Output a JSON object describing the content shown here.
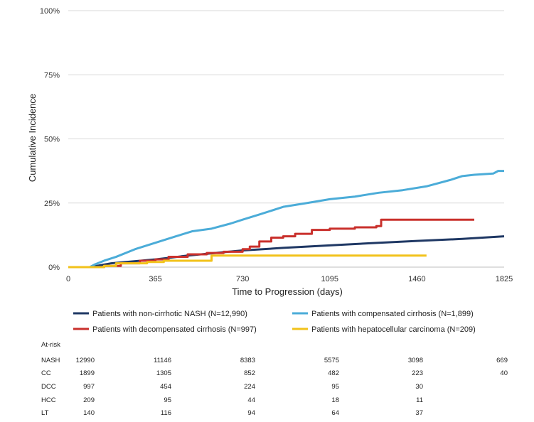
{
  "chart_data": {
    "type": "line",
    "title": "",
    "xlabel": "Time to Progression (days)",
    "ylabel": "Cumulative Incidence",
    "xlim": [
      0,
      1825
    ],
    "ylim": [
      0,
      100
    ],
    "x_ticks": [
      0,
      365,
      730,
      1095,
      1460,
      1825
    ],
    "y_ticks": [
      0,
      25,
      50,
      75,
      100
    ],
    "y_tick_labels": [
      "0%",
      "25%",
      "50%",
      "75%",
      "100%"
    ],
    "grid": "horizontal",
    "legend_position": "bottom",
    "series": [
      {
        "name": "Patients with non-cirrhotic NASH (N=12,990)",
        "color": "#1f3864",
        "step": false,
        "points": [
          [
            90,
            0
          ],
          [
            180,
            1.5
          ],
          [
            365,
            3
          ],
          [
            500,
            4.5
          ],
          [
            730,
            6.5
          ],
          [
            900,
            7.5
          ],
          [
            1095,
            8.5
          ],
          [
            1300,
            9.5
          ],
          [
            1460,
            10.2
          ],
          [
            1650,
            11
          ],
          [
            1825,
            12
          ]
        ]
      },
      {
        "name": "Patients with compensated cirrhosis (N=1,899)",
        "color": "#4bacd8",
        "step": false,
        "points": [
          [
            90,
            0
          ],
          [
            110,
            1
          ],
          [
            150,
            2.5
          ],
          [
            200,
            4
          ],
          [
            280,
            7
          ],
          [
            365,
            9.5
          ],
          [
            450,
            12
          ],
          [
            520,
            14
          ],
          [
            600,
            15
          ],
          [
            680,
            17
          ],
          [
            730,
            18.5
          ],
          [
            800,
            20.5
          ],
          [
            900,
            23.5
          ],
          [
            1000,
            25
          ],
          [
            1095,
            26.5
          ],
          [
            1200,
            27.5
          ],
          [
            1300,
            29
          ],
          [
            1400,
            30
          ],
          [
            1500,
            31.5
          ],
          [
            1600,
            34
          ],
          [
            1650,
            35.5
          ],
          [
            1700,
            36
          ],
          [
            1780,
            36.5
          ],
          [
            1800,
            37.5
          ],
          [
            1825,
            37.5
          ]
        ]
      },
      {
        "name": "Patients with decompensated cirrhosis (N=997)",
        "color": "#c9302c",
        "step": true,
        "points": [
          [
            0,
            0
          ],
          [
            100,
            0
          ],
          [
            150,
            0.5
          ],
          [
            220,
            1.5
          ],
          [
            300,
            2.5
          ],
          [
            365,
            3
          ],
          [
            420,
            4
          ],
          [
            500,
            5
          ],
          [
            580,
            5.5
          ],
          [
            650,
            6
          ],
          [
            730,
            7
          ],
          [
            760,
            8
          ],
          [
            800,
            10
          ],
          [
            850,
            11.5
          ],
          [
            900,
            12
          ],
          [
            950,
            13
          ],
          [
            1020,
            14.5
          ],
          [
            1095,
            15
          ],
          [
            1200,
            15.5
          ],
          [
            1290,
            16
          ],
          [
            1310,
            18.5
          ],
          [
            1400,
            18.5
          ],
          [
            1600,
            18.5
          ],
          [
            1700,
            18.5
          ]
        ]
      },
      {
        "name": "Patients with hepatocellular carcinoma (N=209)",
        "color": "#f2c21a",
        "step": true,
        "points": [
          [
            0,
            0
          ],
          [
            150,
            0.5
          ],
          [
            200,
            1.5
          ],
          [
            330,
            2
          ],
          [
            400,
            2.5
          ],
          [
            500,
            2.5
          ],
          [
            600,
            4.5
          ],
          [
            730,
            4.5
          ],
          [
            1095,
            4.5
          ],
          [
            1460,
            4.5
          ],
          [
            1500,
            4.5
          ]
        ]
      }
    ],
    "at_risk": {
      "title": "At-risk",
      "rows": [
        {
          "label": "NASH",
          "values": [
            "12990",
            "11146",
            "8383",
            "5575",
            "3098",
            "669"
          ]
        },
        {
          "label": "CC",
          "values": [
            "1899",
            "1305",
            "852",
            "482",
            "223",
            "40"
          ]
        },
        {
          "label": "DCC",
          "values": [
            "997",
            "454",
            "224",
            "95",
            "30",
            ""
          ]
        },
        {
          "label": "HCC",
          "values": [
            "209",
            "95",
            "44",
            "18",
            "11",
            ""
          ]
        },
        {
          "label": "LT",
          "values": [
            "140",
            "116",
            "94",
            "64",
            "37",
            ""
          ]
        }
      ]
    }
  }
}
